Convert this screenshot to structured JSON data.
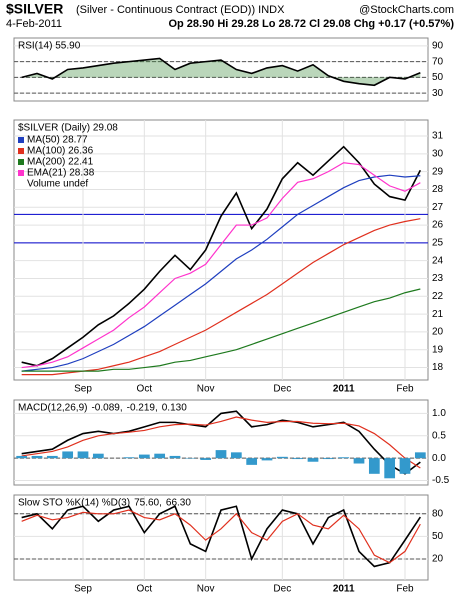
{
  "header": {
    "title": "$SILVER",
    "subtitle": "(Silver - Continuous Contract (EOD)) INDX",
    "source": "@StockCharts.com",
    "date": "4-Feb-2011",
    "quote": "Op 28.90 Hi 29.28 Lo 28.72 Cl 29.08 Chg +0.17 (+0.57%)"
  },
  "chart_data": [
    {
      "type": "line",
      "title": "RSI(14) 55.90",
      "ylim": [
        20,
        100
      ],
      "yticks": [
        90,
        70,
        50,
        30
      ],
      "guides": [
        70,
        50,
        30
      ],
      "series": [
        {
          "name": "RSI(14)",
          "color": "#000000",
          "fill": "#3a8a3a",
          "values": [
            50,
            55,
            48,
            60,
            62,
            65,
            68,
            70,
            72,
            74,
            60,
            68,
            70,
            72,
            60,
            55,
            62,
            65,
            58,
            66,
            52,
            45,
            42,
            40,
            50,
            48,
            55.9
          ]
        }
      ]
    },
    {
      "type": "line",
      "title": "$SILVER (Daily) 29.08",
      "ylim": [
        17.3,
        31.9
      ],
      "yticks": [
        18,
        19,
        20,
        21,
        22,
        23,
        24,
        25,
        26,
        27,
        28,
        29,
        30,
        31
      ],
      "guides": [
        25,
        26.6
      ],
      "guide_color": "#0000cc",
      "categories": [
        null,
        null,
        null,
        null,
        "Sep",
        null,
        null,
        null,
        "Oct",
        null,
        null,
        null,
        "Nov",
        null,
        null,
        null,
        null,
        "Dec",
        null,
        null,
        null,
        "2011",
        null,
        null,
        null,
        "Feb",
        null
      ],
      "notes": [
        "Volume undef"
      ],
      "series": [
        {
          "name": "$SILVER (Daily) 29.08",
          "color": "#000000",
          "values": [
            18.3,
            18.1,
            18.5,
            19.1,
            19.7,
            20.4,
            20.9,
            21.6,
            22.4,
            23.4,
            24.3,
            23.5,
            24.6,
            26.5,
            27.8,
            25.8,
            26.9,
            28.6,
            29.5,
            28.8,
            29.6,
            30.4,
            29.5,
            28.3,
            27.6,
            27.4,
            29.08
          ],
          "legend": false
        },
        {
          "name": "MA(50) 28.77",
          "color": "#1f3fbf",
          "values": [
            17.8,
            17.9,
            18.0,
            18.2,
            18.5,
            18.9,
            19.3,
            19.8,
            20.3,
            20.9,
            21.5,
            22.1,
            22.7,
            23.4,
            24.1,
            24.6,
            25.2,
            25.9,
            26.6,
            27.1,
            27.6,
            28.1,
            28.5,
            28.7,
            28.8,
            28.7,
            28.77
          ]
        },
        {
          "name": "MA(100) 26.36",
          "color": "#e0301e",
          "values": [
            17.6,
            17.6,
            17.6,
            17.7,
            17.8,
            17.9,
            18.1,
            18.3,
            18.6,
            18.9,
            19.3,
            19.7,
            20.1,
            20.6,
            21.1,
            21.6,
            22.1,
            22.7,
            23.3,
            23.9,
            24.4,
            24.9,
            25.3,
            25.7,
            26.0,
            26.2,
            26.36
          ]
        },
        {
          "name": "MA(200) 22.41",
          "color": "#1e7a1e",
          "values": [
            17.8,
            17.8,
            17.8,
            17.8,
            17.8,
            17.8,
            17.9,
            17.9,
            18.0,
            18.1,
            18.3,
            18.4,
            18.6,
            18.8,
            19.0,
            19.3,
            19.6,
            19.9,
            20.2,
            20.5,
            20.8,
            21.1,
            21.4,
            21.7,
            21.9,
            22.2,
            22.41
          ]
        },
        {
          "name": "EMA(21) 28.38",
          "color": "#ff33cc",
          "values": [
            18.0,
            18.1,
            18.3,
            18.6,
            19.1,
            19.6,
            20.1,
            20.8,
            21.4,
            22.2,
            23.0,
            23.3,
            23.8,
            24.9,
            26.0,
            26.0,
            26.4,
            27.5,
            28.4,
            28.6,
            29.0,
            29.5,
            29.4,
            28.8,
            28.2,
            27.9,
            28.38
          ]
        }
      ]
    },
    {
      "type": "line",
      "title": "MACD(12,26,9)",
      "ylim": [
        -0.6,
        1.3
      ],
      "yticks": [
        {
          "value": 1.0,
          "label": "1.0"
        },
        0.5,
        {
          "value": 0.0,
          "label": "0.0"
        },
        -0.5
      ],
      "guides": [
        0
      ],
      "series": [
        {
          "name": "-0.089,",
          "color": "#000000",
          "values": [
            0.1,
            0.15,
            0.2,
            0.4,
            0.55,
            0.6,
            0.55,
            0.6,
            0.7,
            0.8,
            0.8,
            0.75,
            0.7,
            1.0,
            1.05,
            0.7,
            0.75,
            0.85,
            0.8,
            0.7,
            0.75,
            0.8,
            0.6,
            0.2,
            -0.15,
            -0.35,
            -0.089
          ]
        },
        {
          "name": "-0.219,",
          "color": "#e0301e",
          "values": [
            0.05,
            0.1,
            0.15,
            0.25,
            0.4,
            0.5,
            0.55,
            0.58,
            0.62,
            0.7,
            0.75,
            0.76,
            0.74,
            0.82,
            0.92,
            0.85,
            0.8,
            0.82,
            0.82,
            0.78,
            0.77,
            0.78,
            0.72,
            0.55,
            0.3,
            0.0,
            -0.219
          ]
        },
        {
          "name": "0.130",
          "color": "#3399cc",
          "style": "bar",
          "values": [
            0.05,
            0.05,
            0.05,
            0.15,
            0.15,
            0.1,
            0,
            0.02,
            0.08,
            0.1,
            0.05,
            -0.01,
            -0.04,
            0.18,
            0.13,
            -0.15,
            -0.05,
            0.03,
            -0.02,
            -0.08,
            -0.02,
            0.02,
            -0.12,
            -0.35,
            -0.45,
            -0.35,
            0.13
          ]
        }
      ]
    },
    {
      "type": "line",
      "title": "Slow STO %K(14) %D(3)",
      "ylim": [
        -8,
        105
      ],
      "yticks": [
        80,
        50,
        20
      ],
      "guides": [
        80,
        20
      ],
      "categories": [
        null,
        null,
        null,
        null,
        "Sep",
        null,
        null,
        null,
        "Oct",
        null,
        null,
        null,
        "Nov",
        null,
        null,
        null,
        null,
        "Dec",
        null,
        null,
        null,
        "2011",
        null,
        null,
        null,
        "Feb",
        null
      ],
      "series": [
        {
          "name": "75.60,",
          "color": "#000000",
          "values": [
            75,
            80,
            60,
            85,
            90,
            70,
            85,
            90,
            55,
            80,
            90,
            40,
            30,
            85,
            90,
            20,
            60,
            85,
            80,
            40,
            75,
            85,
            30,
            10,
            15,
            45,
            75.6
          ]
        },
        {
          "name": "66.30",
          "color": "#e0301e",
          "values": [
            70,
            78,
            72,
            75,
            82,
            80,
            80,
            85,
            75,
            72,
            80,
            65,
            45,
            60,
            80,
            55,
            45,
            70,
            80,
            65,
            60,
            78,
            60,
            25,
            15,
            30,
            66.3
          ]
        }
      ]
    }
  ]
}
